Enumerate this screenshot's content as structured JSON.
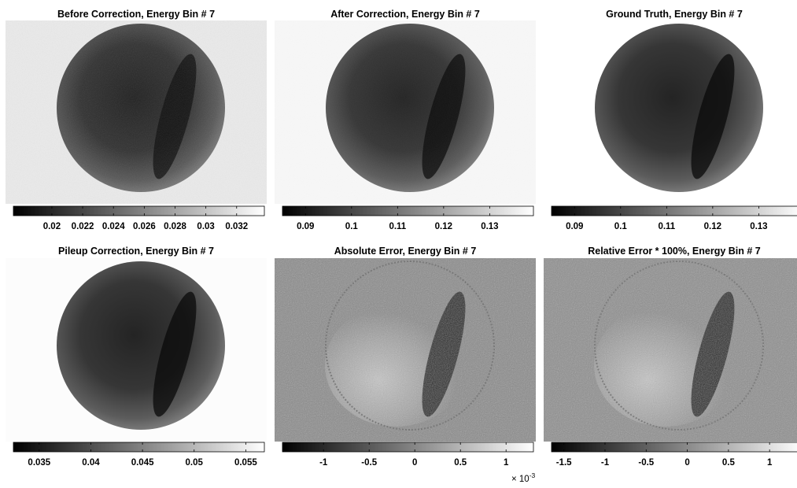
{
  "chart_data": [
    {
      "type": "heatmap",
      "title": "Before Correction,  Energy Bin # 7",
      "colormap": "gray",
      "image": {
        "background": 0.0325,
        "disk": true,
        "ring": false,
        "lens": true,
        "noise": "medium"
      },
      "colorbar": {
        "clim": [
          0.0175,
          0.0338
        ],
        "ticks": [
          0.02,
          0.022,
          0.024,
          0.026,
          0.028,
          0.03,
          0.032
        ],
        "tick_labels": [
          "0.02",
          "0.022",
          "0.024",
          "0.026",
          "0.028",
          "0.03",
          "0.032"
        ],
        "exponent_label": ""
      }
    },
    {
      "type": "heatmap",
      "title": "After Correction,  Energy Bin # 7",
      "colormap": "gray",
      "image": {
        "background": 0.138,
        "disk": true,
        "ring": false,
        "lens": true,
        "noise": "low"
      },
      "colorbar": {
        "clim": [
          0.085,
          0.1395
        ],
        "ticks": [
          0.09,
          0.1,
          0.11,
          0.12,
          0.13
        ],
        "tick_labels": [
          "0.09",
          "0.1",
          "0.11",
          "0.12",
          "0.13"
        ],
        "exponent_label": ""
      }
    },
    {
      "type": "heatmap",
      "title": "Ground Truth,  Energy Bin # 7",
      "colormap": "gray",
      "image": {
        "background": 0.1395,
        "disk": true,
        "ring": false,
        "lens": true,
        "noise": "none"
      },
      "colorbar": {
        "clim": [
          0.085,
          0.1395
        ],
        "ticks": [
          0.09,
          0.1,
          0.11,
          0.12,
          0.13
        ],
        "tick_labels": [
          "0.09",
          "0.1",
          "0.11",
          "0.12",
          "0.13"
        ],
        "exponent_label": ""
      }
    },
    {
      "type": "heatmap",
      "title": "Pileup Correction,  Energy Bin # 7",
      "colormap": "gray",
      "image": {
        "background": 0.0565,
        "disk": true,
        "ring": false,
        "lens": true,
        "noise": "none"
      },
      "colorbar": {
        "clim": [
          0.0325,
          0.0568
        ],
        "ticks": [
          0.035,
          0.04,
          0.045,
          0.05,
          0.055
        ],
        "tick_labels": [
          "0.035",
          "0.04",
          "0.045",
          "0.05",
          "0.055"
        ],
        "exponent_label": ""
      }
    },
    {
      "type": "heatmap",
      "title": "Absolute Error,  Energy Bin # 7",
      "colormap": "gray",
      "image": {
        "background": 0.0,
        "disk": false,
        "ring": true,
        "lens": true,
        "noise": "high"
      },
      "colorbar": {
        "clim": [
          -1.45,
          1.3
        ],
        "ticks": [
          -1,
          -0.5,
          0,
          0.5,
          1
        ],
        "tick_labels": [
          "-1",
          "-0.5",
          "0",
          "0.5",
          "1"
        ],
        "exponent_label": "× 10",
        "exponent_power": "-3"
      }
    },
    {
      "type": "heatmap",
      "title": "Relative Error * 100%,  Energy Bin # 7",
      "colormap": "gray",
      "image": {
        "background": 0.0,
        "disk": false,
        "ring": true,
        "lens": true,
        "noise": "high"
      },
      "colorbar": {
        "clim": [
          -1.65,
          1.4
        ],
        "ticks": [
          -1.5,
          -1,
          -0.5,
          0,
          0.5,
          1
        ],
        "tick_labels": [
          "-1.5",
          "-1",
          "-0.5",
          "0",
          "0.5",
          "1"
        ],
        "exponent_label": ""
      }
    }
  ]
}
